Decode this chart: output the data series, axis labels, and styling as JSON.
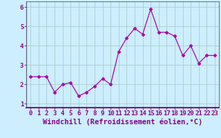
{
  "x": [
    0,
    1,
    2,
    3,
    4,
    5,
    6,
    7,
    8,
    9,
    10,
    11,
    12,
    13,
    14,
    15,
    16,
    17,
    18,
    19,
    20,
    21,
    22,
    23
  ],
  "y": [
    2.4,
    2.4,
    2.4,
    1.6,
    2.0,
    2.1,
    1.4,
    1.6,
    1.9,
    2.3,
    2.0,
    3.7,
    4.4,
    4.9,
    4.6,
    5.9,
    4.7,
    4.7,
    4.5,
    3.5,
    4.0,
    3.1,
    3.5,
    3.5
  ],
  "line_color": "#aa00aa",
  "marker": "D",
  "marker_size": 2.5,
  "bg_color": "#cceeff",
  "grid_color": "#aacccc",
  "xlabel": "Windchill (Refroidissement éolien,°C)",
  "xlabel_color": "#880088",
  "xlabel_fontsize": 7.5,
  "tick_color": "#880088",
  "tick_fontsize": 6.5,
  "ylim": [
    0.8,
    6.3
  ],
  "yticks": [
    1,
    2,
    3,
    4,
    5,
    6
  ],
  "xticks": [
    0,
    1,
    2,
    3,
    4,
    5,
    6,
    7,
    8,
    9,
    10,
    11,
    12,
    13,
    14,
    15,
    16,
    17,
    18,
    19,
    20,
    21,
    22,
    23
  ],
  "spine_color": "#555577",
  "bottom_spine_color": "#880088"
}
